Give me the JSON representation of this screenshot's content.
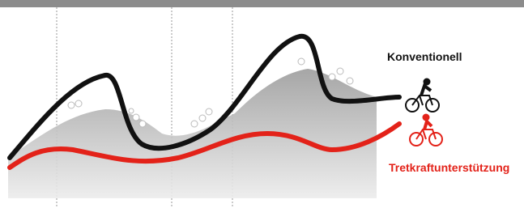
{
  "labels": {
    "conventional": "Konventionell",
    "assisted": "Tretkraftunterstützung"
  }
}
